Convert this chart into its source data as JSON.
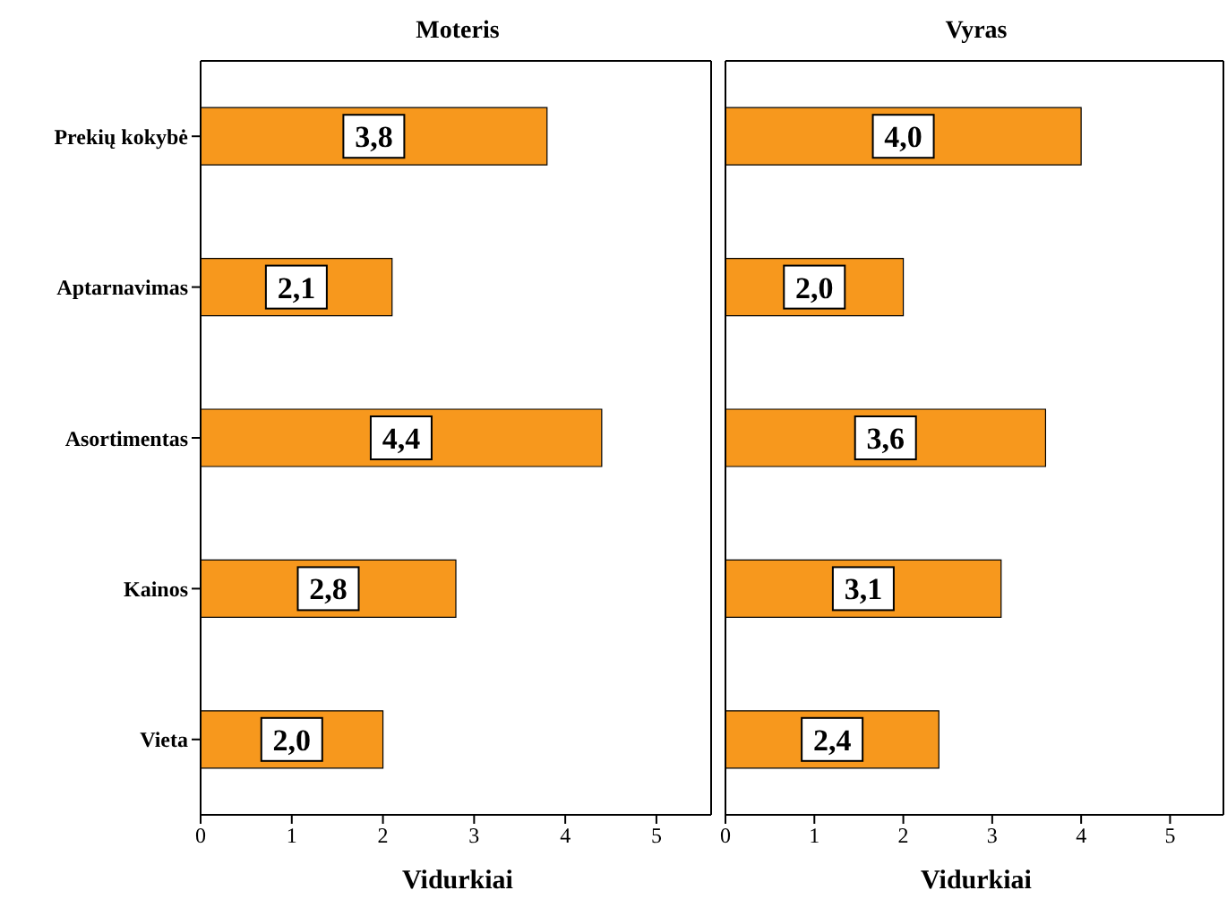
{
  "chart_data": [
    {
      "type": "bar",
      "orientation": "horizontal",
      "title": "Moteris",
      "xlabel": "Vidurkiai",
      "categories": [
        "Prekių kokybė",
        "Aptarnavimas",
        "Asortimentas",
        "Kainos",
        "Vieta"
      ],
      "values": [
        3.8,
        2.1,
        4.4,
        2.8,
        2.0
      ],
      "value_labels": [
        "3,8",
        "2,1",
        "4,4",
        "2,8",
        "2,0"
      ],
      "color": "#f7981d",
      "xlim": [
        0,
        5.6
      ],
      "xticks": [
        0,
        1,
        2,
        3,
        4,
        5
      ],
      "grid": false,
      "legend": false
    },
    {
      "type": "bar",
      "orientation": "horizontal",
      "title": "Vyras",
      "xlabel": "Vidurkiai",
      "values": [
        4.0,
        2.0,
        3.6,
        3.1,
        2.4
      ],
      "value_labels": [
        "4,0",
        "2,0",
        "3,6",
        "3,1",
        "2,4"
      ],
      "color": "#f7981d",
      "xlim": [
        0,
        5.6
      ],
      "xticks": [
        0,
        1,
        2,
        3,
        4,
        5
      ],
      "grid": false,
      "legend": false,
      "tick_labels": "x"
    }
  ]
}
